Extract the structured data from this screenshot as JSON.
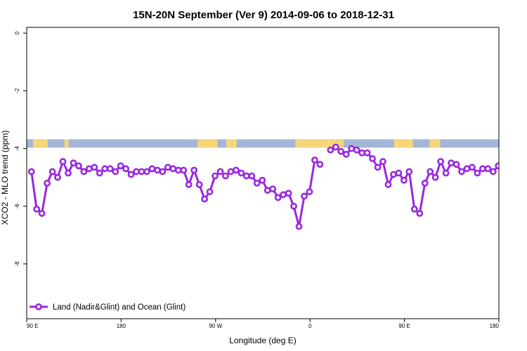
{
  "chart_data": {
    "type": "line",
    "title": "15N-20N September (Ver 9)   2014-09-06 to 2018-12-31",
    "xlabel": "Longitude (deg E)",
    "ylabel": "XCO2 - MLO trend (ppm)",
    "x_ticks": [
      {
        "pos": 90,
        "label": "90 E"
      },
      {
        "pos": 180,
        "label": "180"
      },
      {
        "pos": 270,
        "label": "90 W"
      },
      {
        "pos": 360,
        "label": "0"
      },
      {
        "pos": 450,
        "label": "90 E"
      },
      {
        "pos": 540,
        "label": "180"
      }
    ],
    "y_ticks": [
      {
        "value": 0,
        "label": "0"
      },
      {
        "value": -2,
        "label": "-2"
      },
      {
        "value": -4,
        "label": "-4"
      },
      {
        "value": -6,
        "label": "-6"
      },
      {
        "value": -8,
        "label": "-8"
      }
    ],
    "xlim": [
      90,
      540
    ],
    "ylim": [
      -9.9,
      0.2
    ],
    "land_ocean_band": {
      "y_range": [
        -3.68,
        -3.97
      ],
      "ocean_color": "#a4b6d8",
      "land_color": "#f6d67a",
      "land_segments": [
        [
          96,
          110
        ],
        [
          126,
          130
        ],
        [
          253,
          272
        ],
        [
          280,
          290
        ],
        [
          346,
          392
        ],
        [
          440,
          458
        ],
        [
          474,
          484
        ]
      ]
    },
    "legend": {
      "position": "bottom-left"
    },
    "series": [
      {
        "name": "Land (Nadir&Glint) and Ocean (Glint)",
        "color": "#9a27e0",
        "segments": [
          [
            [
              94.5,
              -4.8
            ],
            [
              99.5,
              -6.1
            ],
            [
              104.5,
              -6.25
            ],
            [
              109.5,
              -5.2
            ],
            [
              114.5,
              -4.8
            ],
            [
              119.5,
              -5.0
            ],
            [
              124.5,
              -4.45
            ],
            [
              129.5,
              -4.85
            ],
            [
              134.5,
              -4.5
            ],
            [
              139.5,
              -4.6
            ],
            [
              144.5,
              -4.8
            ],
            [
              149.5,
              -4.7
            ],
            [
              154.5,
              -4.65
            ],
            [
              159.5,
              -4.85
            ],
            [
              164.5,
              -4.7
            ],
            [
              169.5,
              -4.7
            ],
            [
              174.5,
              -4.8
            ],
            [
              179.5,
              -4.6
            ],
            [
              184.5,
              -4.7
            ],
            [
              189.5,
              -4.9
            ],
            [
              194.5,
              -4.8
            ],
            [
              199.5,
              -4.8
            ],
            [
              204.5,
              -4.8
            ],
            [
              209.5,
              -4.7
            ],
            [
              214.5,
              -4.75
            ],
            [
              219.5,
              -4.8
            ],
            [
              224.5,
              -4.65
            ],
            [
              229.5,
              -4.7
            ],
            [
              234.5,
              -4.75
            ],
            [
              239.5,
              -4.75
            ],
            [
              244.5,
              -5.25
            ],
            [
              249.5,
              -4.75
            ],
            [
              254.5,
              -5.25
            ],
            [
              259.5,
              -5.75
            ],
            [
              264.5,
              -5.5
            ],
            [
              269.5,
              -4.95
            ],
            [
              274.5,
              -4.8
            ],
            [
              279.5,
              -4.95
            ],
            [
              284.5,
              -4.8
            ],
            [
              289.5,
              -4.75
            ],
            [
              294.5,
              -4.85
            ],
            [
              299.5,
              -4.95
            ],
            [
              304.5,
              -4.95
            ],
            [
              309.5,
              -5.2
            ],
            [
              314.5,
              -5.1
            ],
            [
              319.5,
              -5.45
            ],
            [
              324.5,
              -5.4
            ],
            [
              329.5,
              -5.7
            ],
            [
              334.5,
              -5.6
            ],
            [
              339.5,
              -5.55
            ],
            [
              344.5,
              -6.0
            ],
            [
              349.5,
              -6.7
            ],
            [
              354.5,
              -5.65
            ],
            [
              359.5,
              -5.5
            ],
            [
              364.5,
              -4.4
            ],
            [
              369.5,
              -4.55
            ]
          ],
          [
            [
              379.5,
              -4.05
            ],
            [
              384.5,
              -3.95
            ],
            [
              389.5,
              -4.1
            ],
            [
              394.5,
              -4.2
            ],
            [
              399.5,
              -4.0
            ],
            [
              404.5,
              -4.05
            ],
            [
              409.5,
              -4.15
            ],
            [
              414.5,
              -4.15
            ],
            [
              419.5,
              -4.35
            ],
            [
              424.5,
              -4.65
            ],
            [
              429.5,
              -4.45
            ],
            [
              434.5,
              -5.25
            ],
            [
              439.5,
              -4.9
            ],
            [
              444.5,
              -4.85
            ],
            [
              449.5,
              -5.1
            ],
            [
              454.5,
              -4.8
            ],
            [
              459.5,
              -6.1
            ],
            [
              464.5,
              -6.25
            ],
            [
              469.5,
              -5.2
            ],
            [
              474.5,
              -4.8
            ],
            [
              479.5,
              -5.0
            ],
            [
              484.5,
              -4.45
            ],
            [
              489.5,
              -4.85
            ],
            [
              494.5,
              -4.5
            ],
            [
              499.5,
              -4.55
            ],
            [
              504.5,
              -4.8
            ],
            [
              509.5,
              -4.7
            ],
            [
              514.5,
              -4.65
            ],
            [
              519.5,
              -4.85
            ],
            [
              524.5,
              -4.7
            ],
            [
              529.5,
              -4.7
            ],
            [
              534.5,
              -4.8
            ],
            [
              539.5,
              -4.6
            ]
          ]
        ]
      }
    ]
  }
}
